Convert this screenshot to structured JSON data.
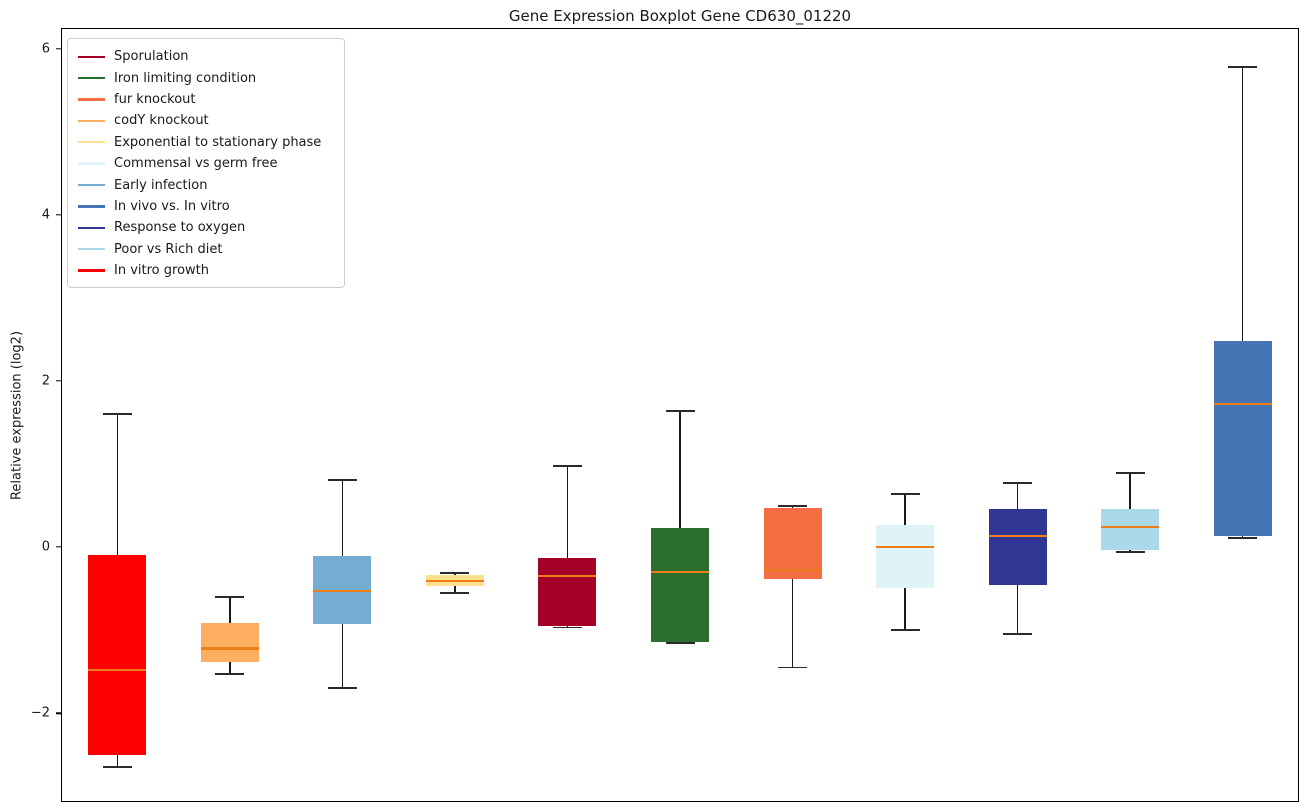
{
  "title": "Gene Expression Boxplot Gene CD630_01220",
  "chart_data": {
    "type": "boxplot",
    "title": "Gene Expression Boxplot Gene CD630_01220",
    "xlabel": "",
    "ylabel": "Relative expression (log2)",
    "ylim": [
      -3.07,
      6.25
    ],
    "yticks": [
      -2,
      0,
      2,
      4,
      6
    ],
    "xlim": [
      0.5,
      11.5
    ],
    "grid": false,
    "legend_position": "upper left",
    "axis_color": "#000000",
    "whisker_color": "#1a1a1a",
    "median_color": "#ee7e18",
    "series": [
      {
        "position": 1,
        "condition": "In vitro growth",
        "color": "#ff0000",
        "whisker_low": -2.65,
        "q1": -2.5,
        "median": -1.48,
        "q3": -0.1,
        "whisker_high": 1.6
      },
      {
        "position": 2,
        "condition": "codY knockout",
        "color": "#fdae61",
        "whisker_low": -1.53,
        "q1": -1.39,
        "median": -1.22,
        "q3": -0.92,
        "whisker_high": -0.6
      },
      {
        "position": 3,
        "condition": "Early infection",
        "color": "#74add1",
        "whisker_low": -1.7,
        "q1": -0.93,
        "median": -0.53,
        "q3": -0.11,
        "whisker_high": 0.81
      },
      {
        "position": 4,
        "condition": "Exponential to stationary phase",
        "color": "#fee090",
        "whisker_low": -0.55,
        "q1": -0.47,
        "median": -0.41,
        "q3": -0.34,
        "whisker_high": -0.31
      },
      {
        "position": 5,
        "condition": "Sporulation",
        "color": "#a50026",
        "whisker_low": -0.97,
        "q1": -0.95,
        "median": -0.35,
        "q3": -0.13,
        "whisker_high": 0.98
      },
      {
        "position": 6,
        "condition": "Iron limiting condition",
        "color": "#2b6e2d",
        "whisker_low": -1.16,
        "q1": -1.14,
        "median": -0.3,
        "q3": 0.23,
        "whisker_high": 1.64
      },
      {
        "position": 7,
        "condition": "fur knockout",
        "color": "#f46d43",
        "whisker_low": -1.45,
        "q1": -0.39,
        "median": -0.28,
        "q3": 0.47,
        "whisker_high": 0.49
      },
      {
        "position": 8,
        "condition": "Commensal vs germ free",
        "color": "#e0f3f8",
        "whisker_low": -1.0,
        "q1": -0.49,
        "median": 0.0,
        "q3": 0.27,
        "whisker_high": 0.64
      },
      {
        "position": 9,
        "condition": "Response to oxygen",
        "color": "#313695",
        "whisker_low": -1.05,
        "q1": -0.46,
        "median": 0.13,
        "q3": 0.46,
        "whisker_high": 0.77
      },
      {
        "position": 10,
        "condition": "Poor vs Rich diet",
        "color": "#abd9e9",
        "whisker_low": -0.06,
        "q1": -0.04,
        "median": 0.24,
        "q3": 0.46,
        "whisker_high": 0.89
      },
      {
        "position": 11,
        "condition": "In vivo vs. In vitro",
        "color": "#4575b4",
        "whisker_low": 0.11,
        "q1": 0.13,
        "median": 1.72,
        "q3": 2.48,
        "whisker_high": 5.78
      }
    ],
    "legend": [
      {
        "label": "Sporulation",
        "color": "#a50026"
      },
      {
        "label": "Iron limiting condition",
        "color": "#2b6e2d"
      },
      {
        "label": "fur knockout",
        "color": "#f46d43"
      },
      {
        "label": "codY knockout",
        "color": "#fdae61"
      },
      {
        "label": "Exponential to stationary phase",
        "color": "#fee090"
      },
      {
        "label": "Commensal vs germ free",
        "color": "#e0f3f8"
      },
      {
        "label": "Early infection",
        "color": "#74add1"
      },
      {
        "label": "In vivo vs. In vitro",
        "color": "#4575b4"
      },
      {
        "label": "Response to oxygen",
        "color": "#313695"
      },
      {
        "label": "Poor vs Rich diet",
        "color": "#abd9e9"
      },
      {
        "label": "In vitro growth",
        "color": "#ff0000"
      }
    ]
  }
}
